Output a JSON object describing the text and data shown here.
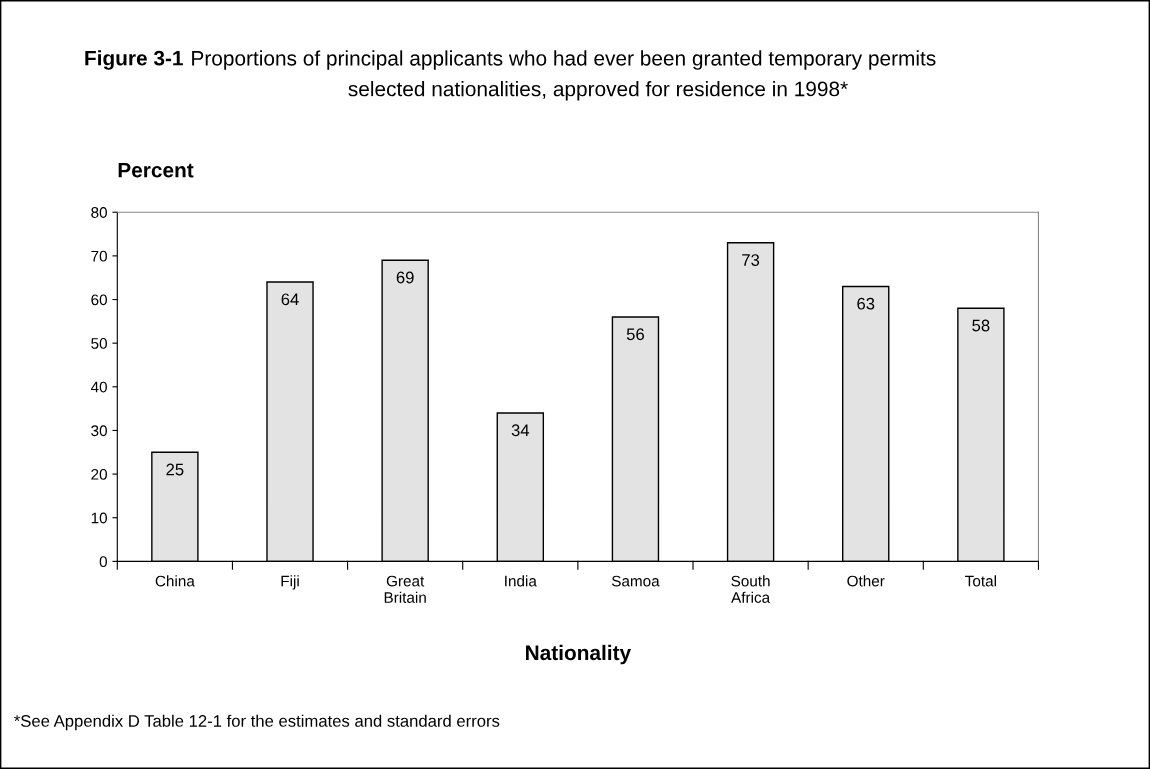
{
  "chart_data": {
    "type": "bar",
    "title": "Figure 3-1",
    "subtitle": "Proportions of principal applicants who had ever been granted temporary permits\nselected nationalities, approved for residence in 1998*",
    "xlabel": "Nationality",
    "ylabel": "Percent",
    "categories": [
      "China",
      "Fiji",
      "Great\nBritain",
      "India",
      "Samoa",
      "South\nAfrica",
      "Other",
      "Total"
    ],
    "values": [
      25,
      64,
      69,
      34,
      56,
      73,
      63,
      58
    ],
    "color": "#e3e3e3",
    "ylim": [
      0,
      80
    ],
    "yticks": [
      0,
      10,
      20,
      30,
      40,
      50,
      60,
      70,
      80
    ],
    "grid": false,
    "legend": false,
    "data_labels": true,
    "annotations": [
      "*See Appendix D Table 12-1 for the estimates and standard errors"
    ]
  }
}
